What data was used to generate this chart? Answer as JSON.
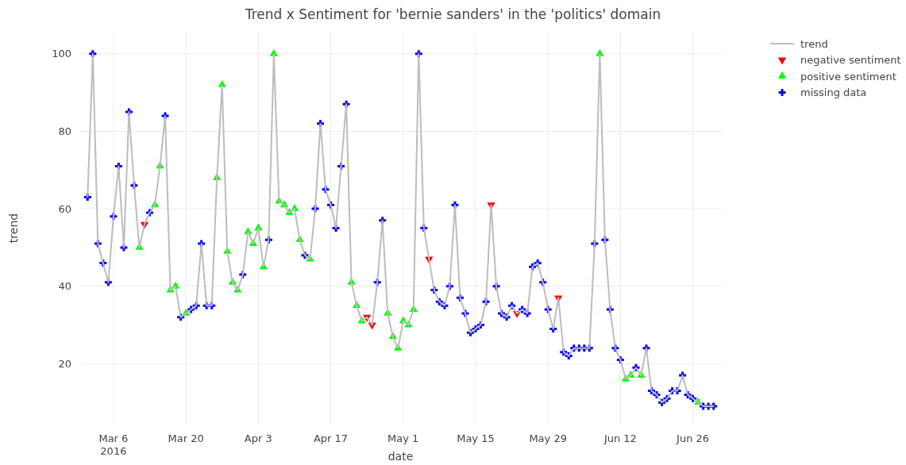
{
  "chart_data": {
    "type": "line",
    "title": "Trend x Sentiment for 'bernie sanders' in the 'politics' domain",
    "xlabel": "date",
    "ylabel": "trend",
    "xlim": [
      "2016-02-28T10:00",
      "2016-07-01T14:00"
    ],
    "ylim": [
      4.3,
      105.7
    ],
    "xticks": [
      {
        "value": "2016-03-06",
        "label": "Mar 6\n2016"
      },
      {
        "value": "2016-03-20",
        "label": "Mar 20"
      },
      {
        "value": "2016-04-03",
        "label": "Apr 3"
      },
      {
        "value": "2016-04-17",
        "label": "Apr 17"
      },
      {
        "value": "2016-05-01",
        "label": "May 1"
      },
      {
        "value": "2016-05-15",
        "label": "May 15"
      },
      {
        "value": "2016-05-29",
        "label": "May 29"
      },
      {
        "value": "2016-06-12",
        "label": "Jun 12"
      },
      {
        "value": "2016-06-26",
        "label": "Jun 26"
      }
    ],
    "yticks": [
      20,
      40,
      60,
      80,
      100
    ],
    "grid": true,
    "legend": "top right",
    "series": [
      {
        "name": "trend",
        "color": "#bdbdbd",
        "marker": "none",
        "line_style": "solid",
        "x": [
          "2016-03-01",
          "2016-03-02",
          "2016-03-03",
          "2016-03-04",
          "2016-03-05",
          "2016-03-06",
          "2016-03-07",
          "2016-03-08",
          "2016-03-09",
          "2016-03-10",
          "2016-03-11",
          "2016-03-12",
          "2016-03-13",
          "2016-03-14",
          "2016-03-15",
          "2016-03-16",
          "2016-03-17",
          "2016-03-18",
          "2016-03-19",
          "2016-03-20",
          "2016-03-21",
          "2016-03-22",
          "2016-03-23",
          "2016-03-24",
          "2016-03-25",
          "2016-03-26",
          "2016-03-27",
          "2016-03-28",
          "2016-03-29",
          "2016-03-30",
          "2016-03-31",
          "2016-04-01",
          "2016-04-02",
          "2016-04-03",
          "2016-04-04",
          "2016-04-05",
          "2016-04-06",
          "2016-04-07",
          "2016-04-08",
          "2016-04-09",
          "2016-04-10",
          "2016-04-11",
          "2016-04-12",
          "2016-04-13",
          "2016-04-14",
          "2016-04-15",
          "2016-04-16",
          "2016-04-17",
          "2016-04-18",
          "2016-04-19",
          "2016-04-20",
          "2016-04-21",
          "2016-04-22",
          "2016-04-23",
          "2016-04-24",
          "2016-04-25",
          "2016-04-26",
          "2016-04-27",
          "2016-04-28",
          "2016-04-29",
          "2016-04-30",
          "2016-05-01",
          "2016-05-02",
          "2016-05-03",
          "2016-05-04",
          "2016-05-05",
          "2016-05-06",
          "2016-05-07",
          "2016-05-08",
          "2016-05-09",
          "2016-05-10",
          "2016-05-11",
          "2016-05-12",
          "2016-05-13",
          "2016-05-14",
          "2016-05-15",
          "2016-05-16",
          "2016-05-17",
          "2016-05-18",
          "2016-05-19",
          "2016-05-20",
          "2016-05-21",
          "2016-05-22",
          "2016-05-23",
          "2016-05-24",
          "2016-05-25",
          "2016-05-26",
          "2016-05-27",
          "2016-05-28",
          "2016-05-29",
          "2016-05-30",
          "2016-05-31",
          "2016-06-01",
          "2016-06-02",
          "2016-06-03",
          "2016-06-04",
          "2016-06-05",
          "2016-06-06",
          "2016-06-07",
          "2016-06-08",
          "2016-06-09",
          "2016-06-10",
          "2016-06-11",
          "2016-06-12",
          "2016-06-13",
          "2016-06-14",
          "2016-06-15",
          "2016-06-16",
          "2016-06-17",
          "2016-06-18",
          "2016-06-19",
          "2016-06-20",
          "2016-06-21",
          "2016-06-22",
          "2016-06-23",
          "2016-06-24",
          "2016-06-25",
          "2016-06-26",
          "2016-06-27",
          "2016-06-28",
          "2016-06-29",
          "2016-06-30"
        ],
        "values": [
          63,
          100,
          51,
          46,
          41,
          58,
          71,
          50,
          85,
          66,
          50,
          56,
          59,
          61,
          71,
          84,
          39,
          40,
          32,
          33,
          34,
          35,
          51,
          35,
          35,
          68,
          92,
          49,
          41,
          39,
          43,
          54,
          51,
          55,
          45,
          52,
          100,
          62,
          61,
          59,
          60,
          52,
          48,
          47,
          60,
          82,
          65,
          61,
          55,
          71,
          87,
          41,
          35,
          31,
          32,
          30,
          41,
          57,
          33,
          27,
          24,
          31,
          30,
          34,
          100,
          55,
          47,
          39,
          36,
          35,
          40,
          61,
          37,
          33,
          28,
          29,
          30,
          36,
          61,
          40,
          33,
          32,
          35,
          33,
          34,
          33,
          45,
          46,
          41,
          34,
          29,
          37,
          23,
          22,
          24,
          24,
          24,
          24,
          51,
          100,
          52,
          34,
          24,
          21,
          16,
          17,
          19,
          17,
          24,
          13,
          12,
          10,
          11,
          13,
          13,
          17,
          12,
          11,
          10,
          9,
          9,
          9
        ]
      },
      {
        "name": "negative sentiment",
        "type": "scatter",
        "color": "#ff0000",
        "marker": "triangle-down",
        "x": [
          "2016-03-12",
          "2016-04-24",
          "2016-04-25",
          "2016-05-06",
          "2016-05-18",
          "2016-05-23",
          "2016-05-31"
        ],
        "values": [
          56,
          32,
          30,
          47,
          61,
          33,
          37
        ]
      },
      {
        "name": "positive sentiment",
        "type": "scatter",
        "color": "#00ff00",
        "marker": "triangle",
        "x": [
          "2016-03-11",
          "2016-03-14",
          "2016-03-15",
          "2016-03-17",
          "2016-03-18",
          "2016-03-20",
          "2016-03-26",
          "2016-03-27",
          "2016-03-28",
          "2016-03-29",
          "2016-03-30",
          "2016-04-01",
          "2016-04-02",
          "2016-04-03",
          "2016-04-04",
          "2016-04-06",
          "2016-04-07",
          "2016-04-08",
          "2016-04-09",
          "2016-04-10",
          "2016-04-11",
          "2016-04-13",
          "2016-04-21",
          "2016-04-22",
          "2016-04-23",
          "2016-04-28",
          "2016-04-29",
          "2016-04-30",
          "2016-05-01",
          "2016-05-02",
          "2016-05-03",
          "2016-06-08",
          "2016-06-13",
          "2016-06-14",
          "2016-06-16",
          "2016-06-27"
        ],
        "values": [
          50,
          61,
          71,
          39,
          40,
          33,
          68,
          92,
          49,
          41,
          39,
          54,
          51,
          55,
          45,
          100,
          62,
          61,
          59,
          60,
          52,
          47,
          41,
          35,
          31,
          33,
          27,
          24,
          31,
          30,
          34,
          100,
          16,
          17,
          17,
          10
        ]
      },
      {
        "name": "missing data",
        "type": "scatter",
        "color": "#0000ff",
        "marker": "cross",
        "x": [
          "2016-03-01",
          "2016-03-02",
          "2016-03-03",
          "2016-03-04",
          "2016-03-05",
          "2016-03-06",
          "2016-03-07",
          "2016-03-08",
          "2016-03-09",
          "2016-03-10",
          "2016-03-13",
          "2016-03-16",
          "2016-03-19",
          "2016-03-21",
          "2016-03-22",
          "2016-03-23",
          "2016-03-24",
          "2016-03-25",
          "2016-03-31",
          "2016-04-05",
          "2016-04-12",
          "2016-04-14",
          "2016-04-15",
          "2016-04-16",
          "2016-04-17",
          "2016-04-18",
          "2016-04-19",
          "2016-04-20",
          "2016-04-26",
          "2016-04-27",
          "2016-05-04",
          "2016-05-05",
          "2016-05-07",
          "2016-05-08",
          "2016-05-09",
          "2016-05-10",
          "2016-05-11",
          "2016-05-12",
          "2016-05-13",
          "2016-05-14",
          "2016-05-15",
          "2016-05-16",
          "2016-05-17",
          "2016-05-19",
          "2016-05-20",
          "2016-05-21",
          "2016-05-22",
          "2016-05-24",
          "2016-05-25",
          "2016-05-26",
          "2016-05-27",
          "2016-05-28",
          "2016-05-29",
          "2016-05-30",
          "2016-06-01",
          "2016-06-02",
          "2016-06-03",
          "2016-06-04",
          "2016-06-05",
          "2016-06-06",
          "2016-06-07",
          "2016-06-09",
          "2016-06-10",
          "2016-06-11",
          "2016-06-12",
          "2016-06-15",
          "2016-06-17",
          "2016-06-18",
          "2016-06-19",
          "2016-06-20",
          "2016-06-21",
          "2016-06-22",
          "2016-06-23",
          "2016-06-24",
          "2016-06-25",
          "2016-06-26",
          "2016-06-28",
          "2016-06-29",
          "2016-06-30"
        ],
        "values": [
          63,
          100,
          51,
          46,
          41,
          58,
          71,
          50,
          85,
          66,
          59,
          84,
          32,
          34,
          35,
          51,
          35,
          35,
          43,
          52,
          48,
          60,
          82,
          65,
          61,
          55,
          71,
          87,
          41,
          57,
          100,
          55,
          39,
          36,
          35,
          40,
          61,
          37,
          33,
          28,
          29,
          30,
          36,
          40,
          33,
          32,
          35,
          34,
          33,
          45,
          46,
          41,
          34,
          29,
          23,
          22,
          24,
          24,
          24,
          24,
          51,
          52,
          34,
          24,
          21,
          19,
          24,
          13,
          12,
          10,
          11,
          13,
          13,
          17,
          12,
          11,
          9,
          9,
          9
        ]
      }
    ]
  }
}
